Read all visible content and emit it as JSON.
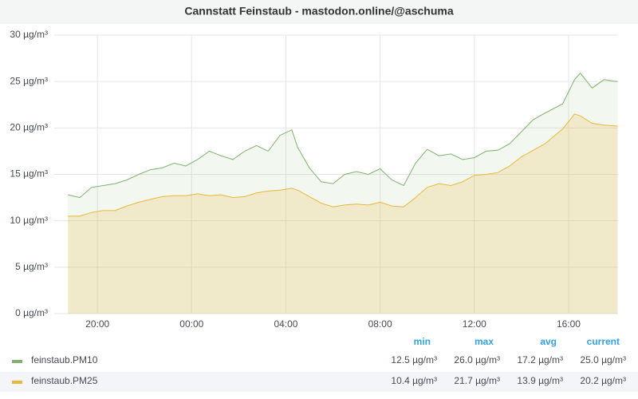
{
  "chart_data": {
    "type": "line",
    "title": "Cannstatt Feinstaub - mastodon.online/@aschuma",
    "x": [
      "18:45",
      "19:15",
      "19:45",
      "20:15",
      "20:45",
      "21:15",
      "21:45",
      "22:15",
      "22:45",
      "23:15",
      "23:45",
      "00:15",
      "00:45",
      "01:15",
      "01:45",
      "02:15",
      "02:45",
      "03:15",
      "03:45",
      "04:15",
      "04:30",
      "05:00",
      "05:30",
      "06:00",
      "06:30",
      "07:00",
      "07:30",
      "08:00",
      "08:30",
      "09:00",
      "09:30",
      "10:00",
      "10:30",
      "11:00",
      "11:30",
      "12:00",
      "12:30",
      "13:00",
      "13:30",
      "14:00",
      "14:30",
      "15:00",
      "15:45",
      "16:15",
      "16:30",
      "17:00",
      "17:30",
      "18:05"
    ],
    "series": [
      {
        "name": "feinstaub.PM10",
        "color": "#7eb26d",
        "values": [
          12.8,
          12.5,
          13.6,
          13.8,
          14.0,
          14.4,
          15.0,
          15.5,
          15.7,
          16.2,
          15.9,
          16.6,
          17.5,
          17.0,
          16.6,
          17.5,
          18.1,
          17.5,
          19.2,
          19.8,
          17.9,
          15.7,
          14.2,
          14.0,
          15.0,
          15.3,
          15.0,
          15.6,
          14.4,
          13.8,
          16.2,
          17.7,
          17.0,
          17.2,
          16.6,
          16.8,
          17.5,
          17.6,
          18.3,
          19.6,
          20.9,
          21.6,
          22.6,
          25.2,
          25.9,
          24.3,
          25.2,
          25.0
        ],
        "stats": [
          "12.5 µg/m³",
          "26.0 µg/m³",
          "17.2 µg/m³",
          "25.0 µg/m³"
        ]
      },
      {
        "name": "feinstaub.PM25",
        "color": "#eab839",
        "values": [
          10.5,
          10.5,
          10.9,
          11.1,
          11.1,
          11.6,
          12.0,
          12.3,
          12.6,
          12.7,
          12.7,
          12.9,
          12.7,
          12.8,
          12.5,
          12.6,
          13.0,
          13.2,
          13.3,
          13.5,
          13.3,
          12.6,
          11.9,
          11.5,
          11.7,
          11.8,
          11.7,
          12.0,
          11.6,
          11.5,
          12.5,
          13.6,
          14.0,
          13.8,
          14.2,
          14.9,
          15.0,
          15.2,
          15.9,
          16.9,
          17.6,
          18.3,
          19.9,
          21.5,
          21.3,
          20.5,
          20.3,
          20.2
        ],
        "stats": [
          "10.4 µg/m³",
          "21.7 µg/m³",
          "13.9 µg/m³",
          "20.2 µg/m³"
        ]
      }
    ],
    "legend_columns": [
      "min",
      "max",
      "avg",
      "current"
    ],
    "xlim": [
      "18:10",
      "18:06"
    ],
    "xticks": [
      "20:00",
      "00:00",
      "04:00",
      "08:00",
      "12:00",
      "16:00"
    ],
    "ylim": [
      0,
      30
    ],
    "yticks": [
      {
        "value": 0,
        "label": "0 µg/m³"
      },
      {
        "value": 5,
        "label": "5 µg/m³"
      },
      {
        "value": 10,
        "label": "10 µg/m³"
      },
      {
        "value": 15,
        "label": "15 µg/m³"
      },
      {
        "value": 20,
        "label": "20 µg/m³"
      },
      {
        "value": 25,
        "label": "25 µg/m³"
      },
      {
        "value": 30,
        "label": "30 µg/m³"
      }
    ],
    "grid": true
  }
}
